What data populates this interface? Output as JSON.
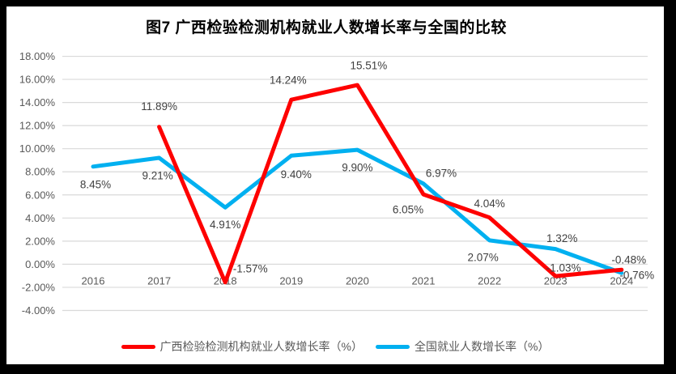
{
  "title": "图7 广西检验检测机构就业人数增长率与全国的比较",
  "colors": {
    "frame": "#000000",
    "background": "#ffffff",
    "gridline": "#d9d9d9",
    "axis_label": "#595959",
    "data_label": "#404040",
    "series_guangxi": "#fe0000",
    "series_national": "#00b0f0"
  },
  "chart_data": {
    "type": "line",
    "title": "图7 广西检验检测机构就业人数增长率与全国的比较",
    "xlabel": "",
    "ylabel": "",
    "categories": [
      "2016",
      "2017",
      "2018",
      "2019",
      "2020",
      "2021",
      "2022",
      "2023",
      "2024"
    ],
    "y_tick_labels": [
      "18.00%",
      "16.00%",
      "14.00%",
      "12.00%",
      "10.00%",
      "8.00%",
      "6.00%",
      "4.00%",
      "2.00%",
      "0.00%",
      "-2.00%",
      "-4.00%"
    ],
    "ylim": [
      -4,
      18
    ],
    "y_step": 2,
    "grid": true,
    "legend_position": "bottom",
    "series": [
      {
        "name": "广西检验检测机构就业人数增长率（%）",
        "color": "#fe0000",
        "points": [
          {
            "x": "2017",
            "y": 11.89,
            "label": "11.89%",
            "label_offset": [
              0,
              -25
            ]
          },
          {
            "x": "2018",
            "y": -1.57,
            "label": "-1.57%",
            "label_offset": [
              31,
              -17
            ]
          },
          {
            "x": "2019",
            "y": 14.24,
            "label": "14.24%",
            "label_offset": [
              -4,
              -24
            ]
          },
          {
            "x": "2020",
            "y": 15.51,
            "label": "15.51%",
            "label_offset": [
              14,
              -24
            ]
          },
          {
            "x": "2021",
            "y": 6.05,
            "label": "6.05%",
            "label_offset": [
              -19,
              19
            ]
          },
          {
            "x": "2022",
            "y": 4.04,
            "label": "4.04%",
            "label_offset": [
              0,
              -17
            ]
          },
          {
            "x": "2023",
            "y": -1.03,
            "label": "-1.03%",
            "label_offset": [
              10,
              -10
            ]
          },
          {
            "x": "2024",
            "y": -0.48,
            "label": "-0.48%",
            "label_offset": [
              9,
              -12
            ]
          }
        ]
      },
      {
        "name": "全国就业人数增长率（%）",
        "color": "#00b0f0",
        "points": [
          {
            "x": "2016",
            "y": 8.45,
            "label": "8.45%",
            "label_offset": [
              3,
              22
            ]
          },
          {
            "x": "2017",
            "y": 9.21,
            "label": "9.21%",
            "label_offset": [
              -2,
              22
            ]
          },
          {
            "x": "2018",
            "y": 4.91,
            "label": "4.91%",
            "label_offset": [
              0,
              21
            ]
          },
          {
            "x": "2019",
            "y": 9.4,
            "label": "9.40%",
            "label_offset": [
              6,
              23
            ]
          },
          {
            "x": "2020",
            "y": 9.9,
            "label": "9.90%",
            "label_offset": [
              0,
              22
            ]
          },
          {
            "x": "2021",
            "y": 6.97,
            "label": "6.97%",
            "label_offset": [
              22,
              -13
            ]
          },
          {
            "x": "2022",
            "y": 2.07,
            "label": "2.07%",
            "label_offset": [
              -8,
              21
            ]
          },
          {
            "x": "2023",
            "y": 1.32,
            "label": "1.32%",
            "label_offset": [
              8,
              -13
            ]
          },
          {
            "x": "2024",
            "y": -0.76,
            "label": "-0.76%",
            "label_offset": [
              19,
              3
            ]
          }
        ]
      }
    ]
  }
}
